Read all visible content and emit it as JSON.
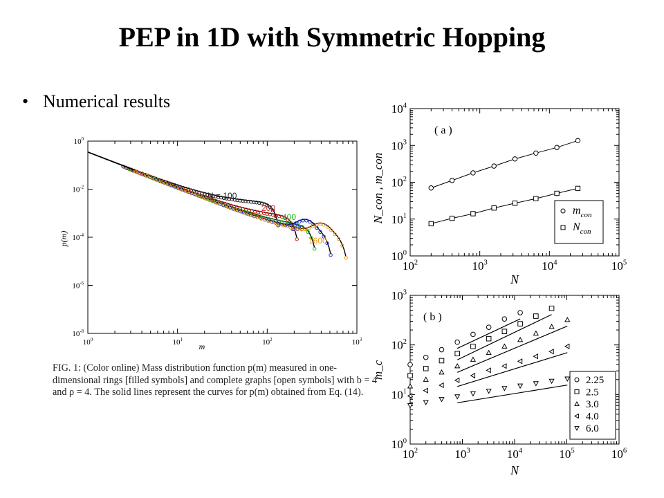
{
  "title": "PEP in 1D with Symmetric Hopping",
  "bullet": {
    "symbol": "•",
    "text": "Numerical results"
  },
  "caption": "FIG. 1: (Color online) Mass distribution function p(m) measured in one-dimensional rings [filled symbols] and complete graphs [open symbols] with b = 4 and ρ = 4. The solid lines represent the curves for p(m) obtained from Eq. (14).",
  "chart_data": [
    {
      "id": "fig1",
      "type": "line",
      "xlabel": "m",
      "ylabel": "p(m)",
      "xscale": "log",
      "yscale": "log",
      "xlim": [
        1,
        1000
      ],
      "ylim": [
        1e-08,
        1
      ],
      "xticks": [
        {
          "base": "10",
          "exp": "0"
        },
        {
          "base": "10",
          "exp": "1"
        },
        {
          "base": "10",
          "exp": "2"
        },
        {
          "base": "10",
          "exp": "3"
        }
      ],
      "yticks": [
        {
          "base": "10",
          "exp": "0"
        },
        {
          "base": "10",
          "exp": "-2"
        },
        {
          "base": "10",
          "exp": "-4"
        },
        {
          "base": "10",
          "exp": "-6"
        },
        {
          "base": "10",
          "exp": "-8"
        }
      ],
      "series": [
        {
          "name": "N = 100",
          "color": "#222222",
          "plateau": 0.0025,
          "cut": 130
        },
        {
          "name": "200",
          "color": "#dd1c1c",
          "plateau": 0.0006,
          "cut": 210
        },
        {
          "name": "400",
          "color": "#19b519",
          "plateau": 0.00022,
          "cut": 330
        },
        {
          "name": "800",
          "color": "#1f2fd6",
          "plateau": 0.00012,
          "cut": 500
        },
        {
          "name": "1600",
          "color": "#f19a1c",
          "plateau": 0.0001,
          "cut": 740
        }
      ]
    },
    {
      "id": "panel-a",
      "type": "scatter",
      "panel_label": "( a )",
      "xlabel": "N",
      "ylabel": "N_con , m_con",
      "xscale": "log",
      "yscale": "log",
      "xlim": [
        100,
        100000
      ],
      "ylim": [
        1,
        10000
      ],
      "xticks": [
        {
          "base": "10",
          "exp": "2"
        },
        {
          "base": "10",
          "exp": "3"
        },
        {
          "base": "10",
          "exp": "4"
        },
        {
          "base": "10",
          "exp": "5"
        }
      ],
      "yticks": [
        {
          "base": "10",
          "exp": "0"
        },
        {
          "base": "10",
          "exp": "1"
        },
        {
          "base": "10",
          "exp": "2"
        },
        {
          "base": "10",
          "exp": "3"
        },
        {
          "base": "10",
          "exp": "4"
        }
      ],
      "legend": {
        "placement": "bottom-right",
        "entries": [
          {
            "label": "m",
            "sub": "con"
          },
          {
            "label": "N",
            "sub": "con"
          }
        ]
      },
      "series": [
        {
          "name": "m_con",
          "marker": "circle",
          "x": [
            200,
            400,
            800,
            1600,
            3200,
            6400,
            12800,
            25600
          ],
          "y": [
            70,
            112,
            180,
            275,
            430,
            620,
            880,
            1350
          ]
        },
        {
          "name": "N_con",
          "marker": "square",
          "x": [
            200,
            400,
            800,
            1600,
            3200,
            6400,
            12800,
            25600
          ],
          "y": [
            7.5,
            10.5,
            14,
            20,
            27,
            36,
            50,
            68
          ]
        }
      ]
    },
    {
      "id": "panel-b",
      "type": "scatter",
      "panel_label": "( b )",
      "xlabel": "N",
      "ylabel": "m_c",
      "xscale": "log",
      "yscale": "log",
      "xlim": [
        100,
        1000000
      ],
      "ylim": [
        1,
        1000
      ],
      "xticks": [
        {
          "base": "10",
          "exp": "2"
        },
        {
          "base": "10",
          "exp": "3"
        },
        {
          "base": "10",
          "exp": "4"
        },
        {
          "base": "10",
          "exp": "5"
        },
        {
          "base": "10",
          "exp": "6"
        }
      ],
      "yticks": [
        {
          "base": "10",
          "exp": "0"
        },
        {
          "base": "10",
          "exp": "1"
        },
        {
          "base": "10",
          "exp": "2"
        },
        {
          "base": "10",
          "exp": "3"
        }
      ],
      "legend": {
        "placement": "bottom-right",
        "entries": [
          {
            "label": "2.25"
          },
          {
            "label": "2.5"
          },
          {
            "label": "3.0"
          },
          {
            "label": "4.0"
          },
          {
            "label": "6.0"
          }
        ]
      },
      "series": [
        {
          "name": "2.25",
          "marker": "circle",
          "x": [
            100,
            200,
            400,
            800,
            1600,
            3200,
            6400,
            12800
          ],
          "y": [
            30,
            42,
            60,
            85,
            122,
            170,
            250,
            335
          ]
        },
        {
          "name": "2.5",
          "marker": "square",
          "x": [
            100,
            200,
            400,
            800,
            1600,
            3200,
            6400,
            12800,
            25600,
            51200
          ],
          "y": [
            18,
            25,
            36,
            50,
            70,
            100,
            140,
            200,
            285,
            410
          ]
        },
        {
          "name": "3.0",
          "marker": "triangle-up",
          "x": [
            100,
            200,
            400,
            800,
            1600,
            3200,
            6400,
            12800,
            25600,
            51200,
            102400
          ],
          "y": [
            11,
            15,
            21,
            28,
            38,
            52,
            70,
            95,
            128,
            175,
            240
          ]
        },
        {
          "name": "4.0",
          "marker": "triangle-left",
          "x": [
            100,
            200,
            400,
            800,
            1600,
            3200,
            6400,
            12800,
            25600,
            51200,
            102400
          ],
          "y": [
            7,
            9,
            11.5,
            14.5,
            18,
            23,
            28,
            35,
            44,
            55,
            70
          ]
        },
        {
          "name": "6.0",
          "marker": "triangle-down",
          "x": [
            100,
            200,
            400,
            800,
            1600,
            3200,
            6400,
            12800,
            25600,
            51200,
            102400
          ],
          "y": [
            4.5,
            5.2,
            6.0,
            6.8,
            7.8,
            8.8,
            10,
            11.2,
            12.5,
            14,
            15.5
          ]
        }
      ]
    }
  ]
}
